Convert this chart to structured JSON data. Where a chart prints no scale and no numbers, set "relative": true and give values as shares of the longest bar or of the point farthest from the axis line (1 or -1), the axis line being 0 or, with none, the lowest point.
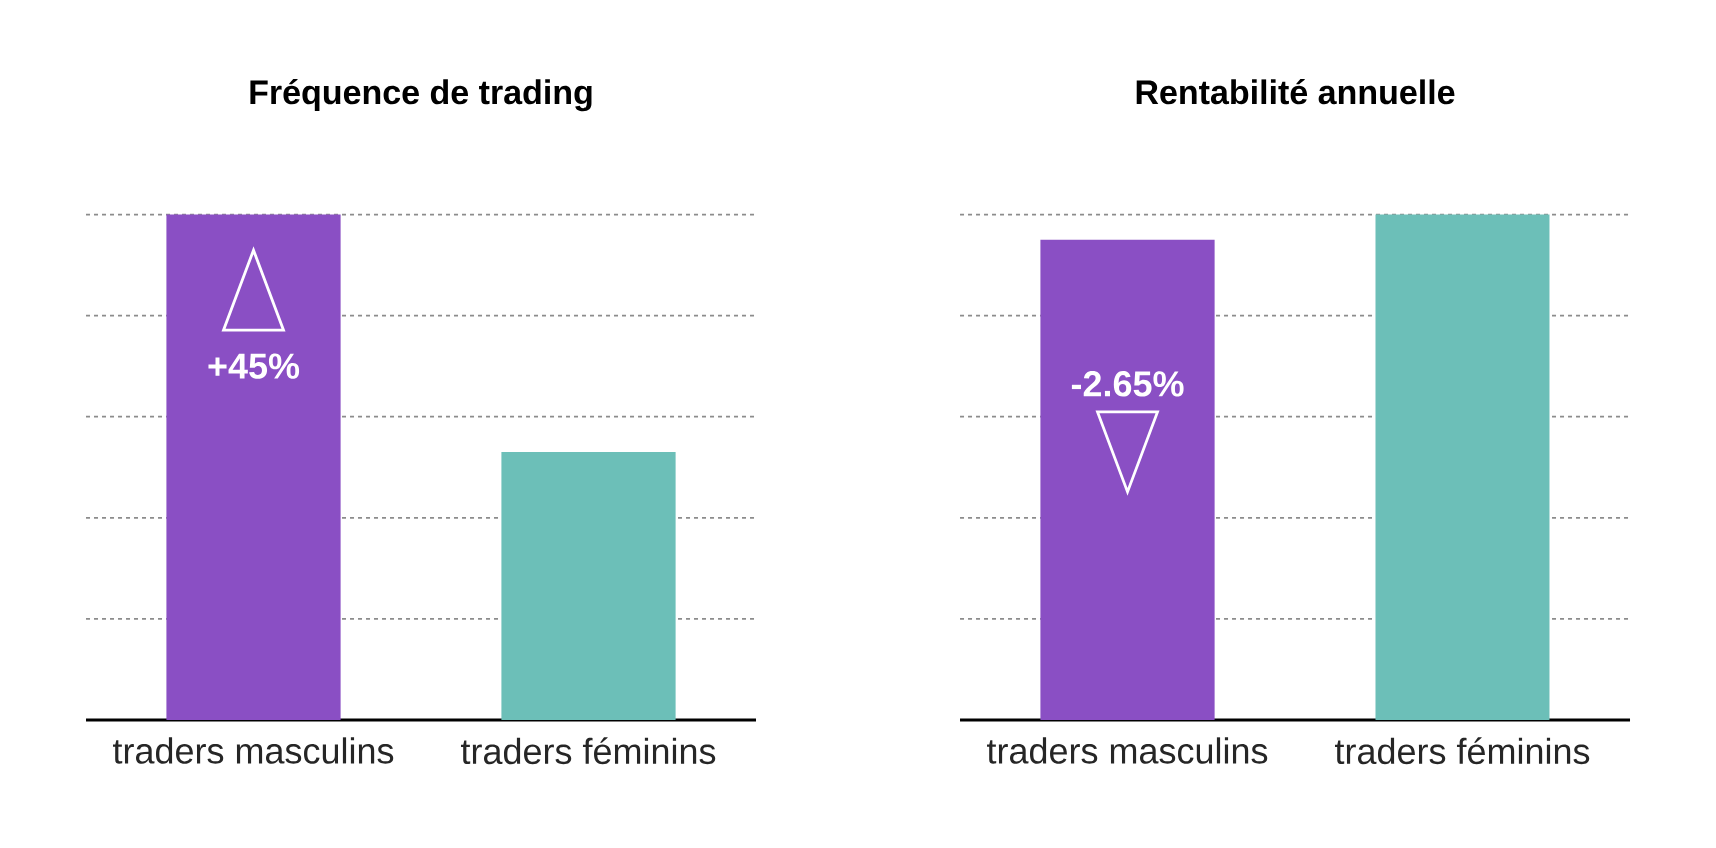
{
  "chart_data": [
    {
      "type": "bar",
      "title": "Fréquence de trading",
      "categories": [
        "traders masculins",
        "traders féminins"
      ],
      "values": [
        1,
        0.53
      ],
      "colors": [
        "#8a4fc4",
        "#6cbfb8"
      ],
      "relative": true,
      "grid": "y",
      "annotations": [
        "+45%"
      ]
    },
    {
      "type": "bar",
      "title": "Rentabilité annuelle",
      "categories": [
        "traders masculins",
        "traders féminins"
      ],
      "values": [
        0.95,
        1
      ],
      "colors": [
        "#8a4fc4",
        "#6cbfb8"
      ],
      "relative": true,
      "grid": "y",
      "annotations": [
        "-2.65%"
      ]
    }
  ]
}
